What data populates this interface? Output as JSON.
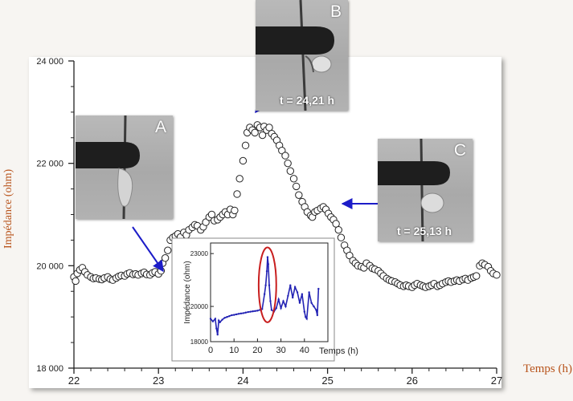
{
  "chart_data": [
    {
      "type": "scatter",
      "title": "",
      "xlabel": "Temps (h)",
      "ylabel": "Impédance (ohm)",
      "xlim": [
        22,
        27
      ],
      "ylim": [
        18000,
        24000
      ],
      "x_ticks": [
        22,
        23,
        24,
        25,
        26,
        27
      ],
      "x_tick_labels": [
        "22",
        "23",
        "24",
        "25",
        "26",
        "27"
      ],
      "y_ticks": [
        18000,
        20000,
        22000,
        24000
      ],
      "y_tick_labels": [
        "18 000",
        "20 000",
        "22 000",
        "24 000"
      ],
      "grid": false,
      "marker": "open-circle",
      "color": "#222222",
      "points": [
        [
          22.0,
          19780
        ],
        [
          22.02,
          19700
        ],
        [
          22.04,
          19850
        ],
        [
          22.07,
          19920
        ],
        [
          22.1,
          19960
        ],
        [
          22.13,
          19880
        ],
        [
          22.16,
          19820
        ],
        [
          22.2,
          19780
        ],
        [
          22.23,
          19750
        ],
        [
          22.26,
          19760
        ],
        [
          22.3,
          19740
        ],
        [
          22.33,
          19730
        ],
        [
          22.36,
          19760
        ],
        [
          22.4,
          19780
        ],
        [
          22.43,
          19740
        ],
        [
          22.46,
          19720
        ],
        [
          22.5,
          19760
        ],
        [
          22.53,
          19790
        ],
        [
          22.56,
          19810
        ],
        [
          22.6,
          19800
        ],
        [
          22.63,
          19840
        ],
        [
          22.66,
          19860
        ],
        [
          22.7,
          19830
        ],
        [
          22.73,
          19840
        ],
        [
          22.76,
          19820
        ],
        [
          22.8,
          19850
        ],
        [
          22.83,
          19870
        ],
        [
          22.86,
          19830
        ],
        [
          22.9,
          19820
        ],
        [
          22.93,
          19860
        ],
        [
          22.96,
          19880
        ],
        [
          23.0,
          19840
        ],
        [
          23.03,
          19900
        ],
        [
          23.05,
          20050
        ],
        [
          23.08,
          20150
        ],
        [
          23.11,
          20300
        ],
        [
          23.14,
          20500
        ],
        [
          23.17,
          20550
        ],
        [
          23.2,
          20580
        ],
        [
          23.23,
          20620
        ],
        [
          23.26,
          20560
        ],
        [
          23.3,
          20650
        ],
        [
          23.33,
          20600
        ],
        [
          23.36,
          20700
        ],
        [
          23.4,
          20750
        ],
        [
          23.43,
          20800
        ],
        [
          23.46,
          20780
        ],
        [
          23.5,
          20700
        ],
        [
          23.53,
          20760
        ],
        [
          23.56,
          20850
        ],
        [
          23.6,
          20950
        ],
        [
          23.63,
          21000
        ],
        [
          23.66,
          20880
        ],
        [
          23.7,
          20900
        ],
        [
          23.73,
          20950
        ],
        [
          23.76,
          21000
        ],
        [
          23.79,
          21050
        ],
        [
          23.82,
          21000
        ],
        [
          23.85,
          21100
        ],
        [
          23.88,
          21000
        ],
        [
          23.9,
          21080
        ],
        [
          23.93,
          21400
        ],
        [
          23.96,
          21700
        ],
        [
          24.0,
          22050
        ],
        [
          24.03,
          22350
        ],
        [
          24.05,
          22600
        ],
        [
          24.08,
          22700
        ],
        [
          24.11,
          22650
        ],
        [
          24.14,
          22600
        ],
        [
          24.17,
          22750
        ],
        [
          24.2,
          22700
        ],
        [
          24.23,
          22550
        ],
        [
          24.25,
          22720
        ],
        [
          24.28,
          22650
        ],
        [
          24.31,
          22700
        ],
        [
          24.34,
          22580
        ],
        [
          24.37,
          22520
        ],
        [
          24.4,
          22450
        ],
        [
          24.43,
          22350
        ],
        [
          24.46,
          22250
        ],
        [
          24.5,
          22150
        ],
        [
          24.53,
          22000
        ],
        [
          24.56,
          21850
        ],
        [
          24.6,
          21700
        ],
        [
          24.63,
          21550
        ],
        [
          24.66,
          21380
        ],
        [
          24.7,
          21250
        ],
        [
          24.73,
          21150
        ],
        [
          24.76,
          21050
        ],
        [
          24.8,
          20980
        ],
        [
          24.82,
          20950
        ],
        [
          24.85,
          21050
        ],
        [
          24.88,
          21080
        ],
        [
          24.92,
          21120
        ],
        [
          24.95,
          21150
        ],
        [
          24.98,
          21100
        ],
        [
          25.01,
          21020
        ],
        [
          25.04,
          20950
        ],
        [
          25.07,
          20900
        ],
        [
          25.1,
          20820
        ],
        [
          25.13,
          20700
        ],
        [
          25.16,
          20550
        ],
        [
          25.2,
          20400
        ],
        [
          25.23,
          20300
        ],
        [
          25.26,
          20200
        ],
        [
          25.3,
          20100
        ],
        [
          25.33,
          20050
        ],
        [
          25.36,
          20000
        ],
        [
          25.4,
          19980
        ],
        [
          25.43,
          19960
        ],
        [
          25.46,
          20050
        ],
        [
          25.5,
          20000
        ],
        [
          25.53,
          19950
        ],
        [
          25.56,
          19930
        ],
        [
          25.6,
          19900
        ],
        [
          25.63,
          19850
        ],
        [
          25.66,
          19800
        ],
        [
          25.7,
          19750
        ],
        [
          25.73,
          19720
        ],
        [
          25.76,
          19700
        ],
        [
          25.8,
          19680
        ],
        [
          25.83,
          19650
        ],
        [
          25.86,
          19620
        ],
        [
          25.9,
          19600
        ],
        [
          25.93,
          19620
        ],
        [
          25.96,
          19600
        ],
        [
          26.0,
          19580
        ],
        [
          26.03,
          19620
        ],
        [
          26.06,
          19650
        ],
        [
          26.1,
          19620
        ],
        [
          26.13,
          19600
        ],
        [
          26.16,
          19580
        ],
        [
          26.2,
          19600
        ],
        [
          26.23,
          19620
        ],
        [
          26.26,
          19650
        ],
        [
          26.3,
          19600
        ],
        [
          26.33,
          19620
        ],
        [
          26.36,
          19650
        ],
        [
          26.4,
          19680
        ],
        [
          26.43,
          19700
        ],
        [
          26.46,
          19680
        ],
        [
          26.5,
          19700
        ],
        [
          26.53,
          19720
        ],
        [
          26.56,
          19700
        ],
        [
          26.6,
          19730
        ],
        [
          26.63,
          19750
        ],
        [
          26.66,
          19720
        ],
        [
          26.7,
          19760
        ],
        [
          26.73,
          19780
        ],
        [
          26.76,
          19800
        ],
        [
          26.8,
          20000
        ],
        [
          26.83,
          20050
        ],
        [
          26.86,
          20020
        ],
        [
          26.9,
          19980
        ],
        [
          26.93,
          19900
        ],
        [
          26.96,
          19850
        ],
        [
          27.0,
          19820
        ]
      ]
    },
    {
      "type": "scatter",
      "title": "",
      "xlabel": "Temps (h)",
      "ylabel": "Impédance (ohm)",
      "xlim": [
        0,
        50
      ],
      "ylim": [
        18000,
        23600
      ],
      "x_ticks": [
        0,
        10,
        20,
        30,
        40
      ],
      "x_tick_labels": [
        "0",
        "10",
        "20",
        "30",
        "40"
      ],
      "y_ticks": [
        18000,
        20000,
        23000
      ],
      "y_tick_labels": [
        "18000",
        "20000",
        "23000"
      ],
      "grid": false,
      "color": "#2323b4",
      "highlight": {
        "shape": "ellipse",
        "color": "#c81e1e",
        "x_range": [
          20.5,
          28
        ],
        "y_range": [
          19100,
          23350
        ]
      },
      "points": [
        [
          0,
          19300
        ],
        [
          1,
          19150
        ],
        [
          2,
          19300
        ],
        [
          2.5,
          18750
        ],
        [
          3,
          18400
        ],
        [
          3.5,
          19200
        ],
        [
          4,
          19100
        ],
        [
          5,
          19250
        ],
        [
          6,
          19350
        ],
        [
          7,
          19400
        ],
        [
          8,
          19450
        ],
        [
          9,
          19500
        ],
        [
          10,
          19520
        ],
        [
          11,
          19550
        ],
        [
          12,
          19580
        ],
        [
          13,
          19600
        ],
        [
          14,
          19620
        ],
        [
          15,
          19650
        ],
        [
          16,
          19680
        ],
        [
          17,
          19700
        ],
        [
          18,
          19720
        ],
        [
          19,
          19740
        ],
        [
          20,
          19760
        ],
        [
          21,
          19800
        ],
        [
          22,
          19850
        ],
        [
          23,
          20700
        ],
        [
          23.5,
          21200
        ],
        [
          24,
          22000
        ],
        [
          24.3,
          22800
        ],
        [
          24.6,
          22400
        ],
        [
          25,
          21200
        ],
        [
          25.5,
          20300
        ],
        [
          26,
          19800
        ],
        [
          27,
          19700
        ],
        [
          28,
          19900
        ],
        [
          29,
          20400
        ],
        [
          30,
          19900
        ],
        [
          31,
          20300
        ],
        [
          32,
          20000
        ],
        [
          33,
          20600
        ],
        [
          34,
          21200
        ],
        [
          35,
          20500
        ],
        [
          36,
          21100
        ],
        [
          37,
          20800
        ],
        [
          38,
          20200
        ],
        [
          39,
          20700
        ],
        [
          40,
          19700
        ],
        [
          40.5,
          19400
        ],
        [
          41,
          19300
        ],
        [
          42,
          20800
        ],
        [
          43,
          20200
        ],
        [
          44,
          20000
        ],
        [
          45,
          19800
        ],
        [
          45.5,
          19500
        ],
        [
          46,
          21000
        ]
      ]
    }
  ],
  "photos": [
    {
      "label": "A",
      "time": ""
    },
    {
      "label": "B",
      "time": "t  = 24,21 h"
    },
    {
      "label": "C",
      "time": "t  = 25,13 h"
    }
  ],
  "colors": {
    "axis_title": "#b8541c",
    "arrow": "#1c1cc8",
    "highlight": "#c81e1e"
  }
}
